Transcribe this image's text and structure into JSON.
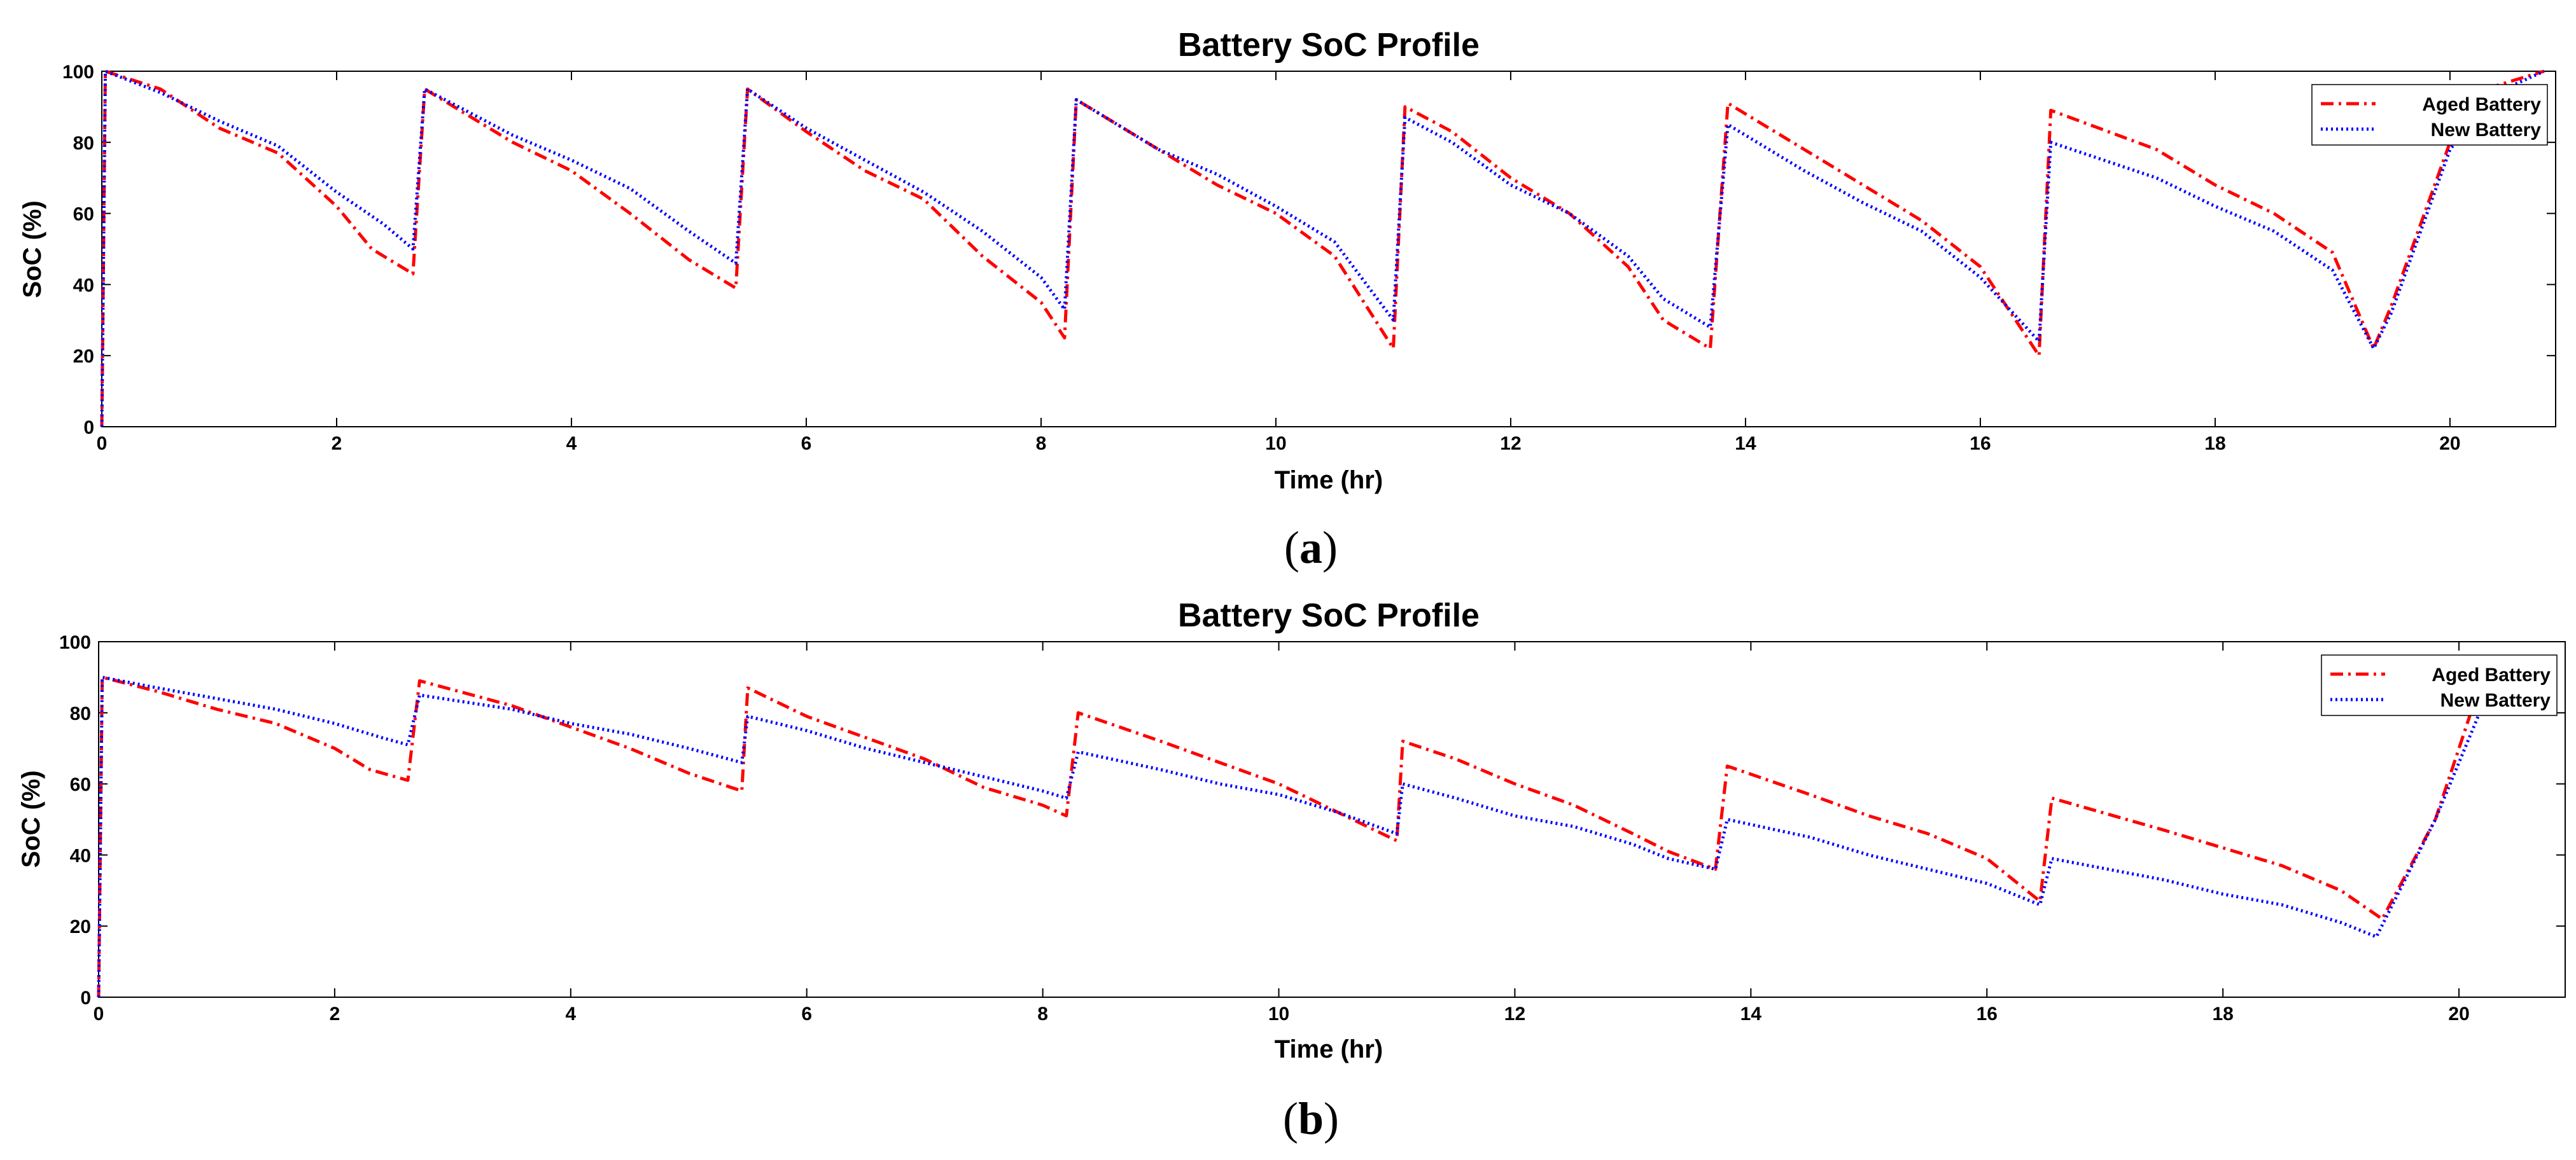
{
  "chart_data": [
    {
      "type": "line",
      "panel_label": "a",
      "title": "Battery SoC Profile",
      "xlabel": "Time (hr)",
      "ylabel": "SoC (%)",
      "xlim": [
        0,
        20.9
      ],
      "ylim": [
        0,
        100
      ],
      "xticks": [
        0,
        2,
        4,
        6,
        8,
        10,
        12,
        14,
        16,
        18,
        20
      ],
      "yticks": [
        0,
        20,
        40,
        60,
        80,
        100
      ],
      "legend_position": "top-right",
      "series": [
        {
          "name": "Aged Battery",
          "color": "#ff0000",
          "style": "dashdot",
          "x": [
            0,
            0.03,
            0.5,
            1.0,
            1.5,
            2.0,
            2.3,
            2.65,
            2.75,
            3.5,
            4.0,
            4.5,
            5.0,
            5.4,
            5.5,
            6.0,
            6.5,
            7.0,
            7.5,
            8.0,
            8.2,
            8.3,
            9.0,
            9.5,
            10.0,
            10.5,
            11.0,
            11.1,
            11.5,
            12.0,
            12.5,
            13.0,
            13.3,
            13.7,
            13.85,
            14.5,
            15.0,
            15.5,
            16.0,
            16.5,
            16.6,
            17.5,
            18.0,
            18.5,
            19.0,
            19.35,
            19.5,
            20.0,
            20.4,
            20.8
          ],
          "y": [
            0,
            100,
            95,
            84,
            77,
            62,
            50,
            43,
            95,
            80,
            72,
            60,
            47,
            39,
            95,
            83,
            72,
            64,
            48,
            35,
            25,
            92,
            78,
            68,
            60,
            48,
            22,
            90,
            83,
            70,
            60,
            45,
            30,
            22,
            91,
            78,
            68,
            58,
            45,
            20,
            89,
            78,
            68,
            60,
            49,
            22,
            34,
            80,
            96,
            100
          ]
        },
        {
          "name": "New Battery",
          "color": "#0000ff",
          "style": "dotted",
          "x": [
            0,
            0.03,
            0.5,
            1.0,
            1.5,
            2.0,
            2.4,
            2.65,
            2.75,
            3.5,
            4.0,
            4.5,
            5.0,
            5.4,
            5.5,
            6.0,
            6.5,
            7.0,
            7.5,
            8.0,
            8.2,
            8.3,
            9.0,
            9.5,
            10.0,
            10.5,
            11.0,
            11.1,
            11.5,
            12.0,
            12.5,
            13.0,
            13.3,
            13.7,
            13.85,
            14.5,
            15.0,
            15.5,
            16.0,
            16.5,
            16.6,
            17.5,
            18.0,
            18.5,
            19.0,
            19.35,
            19.5,
            20.0,
            20.4,
            20.8
          ],
          "y": [
            0,
            100,
            94,
            86,
            79,
            66,
            57,
            50,
            95,
            82,
            75,
            67,
            55,
            46,
            95,
            84,
            75,
            66,
            55,
            42,
            33,
            92,
            78,
            71,
            62,
            52,
            30,
            87,
            80,
            68,
            60,
            48,
            36,
            28,
            85,
            72,
            63,
            55,
            42,
            24,
            80,
            70,
            62,
            55,
            44,
            22,
            32,
            78,
            94,
            100
          ]
        }
      ]
    },
    {
      "type": "line",
      "panel_label": "b",
      "title": "Battery SoC Profile",
      "xlabel": "Time (hr)",
      "ylabel": "SoC (%)",
      "xlim": [
        0,
        20.9
      ],
      "ylim": [
        0,
        100
      ],
      "xticks": [
        0,
        2,
        4,
        6,
        8,
        10,
        12,
        14,
        16,
        18,
        20
      ],
      "yticks": [
        0,
        20,
        40,
        60,
        80,
        100
      ],
      "legend_position": "top-right",
      "series": [
        {
          "name": "Aged Battery",
          "color": "#ff0000",
          "style": "dashdot",
          "x": [
            0,
            0.03,
            0.5,
            1.0,
            1.5,
            2.0,
            2.3,
            2.62,
            2.72,
            3.5,
            4.0,
            4.5,
            5.0,
            5.45,
            5.5,
            6.0,
            6.5,
            7.0,
            7.5,
            8.0,
            8.2,
            8.3,
            9.0,
            9.5,
            10.0,
            10.5,
            11.0,
            11.05,
            11.5,
            12.0,
            12.5,
            13.0,
            13.3,
            13.7,
            13.8,
            14.5,
            15.0,
            15.5,
            16.0,
            16.45,
            16.55,
            17.5,
            18.0,
            18.5,
            19.0,
            19.35,
            19.8,
            20.2
          ],
          "y": [
            0,
            90,
            86,
            81,
            77,
            70,
            64,
            61,
            89,
            82,
            76,
            70,
            63,
            58,
            87,
            79,
            73,
            67,
            59,
            54,
            51,
            80,
            72,
            66,
            60,
            52,
            44,
            72,
            67,
            60,
            54,
            46,
            41,
            36,
            65,
            57,
            51,
            46,
            39,
            27,
            56,
            47,
            42,
            37,
            30,
            22,
            50,
            90
          ]
        },
        {
          "name": "New Battery",
          "color": "#0000ff",
          "style": "dotted",
          "x": [
            0,
            0.03,
            0.5,
            1.0,
            1.5,
            2.0,
            2.4,
            2.62,
            2.72,
            3.5,
            4.0,
            4.5,
            5.0,
            5.45,
            5.5,
            6.0,
            6.5,
            7.0,
            7.5,
            8.0,
            8.2,
            8.3,
            9.0,
            9.5,
            10.0,
            10.5,
            11.0,
            11.05,
            11.5,
            12.0,
            12.5,
            13.0,
            13.3,
            13.7,
            13.8,
            14.5,
            15.0,
            15.5,
            16.0,
            16.45,
            16.55,
            17.5,
            18.0,
            18.5,
            19.0,
            19.3,
            19.8,
            20.3
          ],
          "y": [
            0,
            90,
            87,
            84,
            81,
            77,
            73,
            71,
            85,
            81,
            77,
            74,
            70,
            66,
            79,
            75,
            70,
            66,
            62,
            58,
            56,
            69,
            64,
            60,
            57,
            52,
            46,
            60,
            56,
            51,
            48,
            43,
            39,
            36,
            50,
            45,
            40,
            36,
            32,
            26,
            39,
            33,
            29,
            26,
            21,
            17,
            50,
            90
          ]
        }
      ]
    }
  ]
}
